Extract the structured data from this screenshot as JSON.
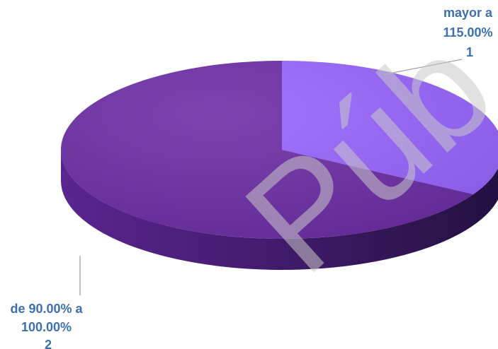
{
  "chart_data": {
    "type": "pie",
    "title": "",
    "categories": [
      "mayor a 115.00%",
      "de 90.00% a 100.00%"
    ],
    "values": [
      1,
      2
    ],
    "colors": [
      "#9966ff",
      "#6d2fa6"
    ],
    "labels": [
      {
        "line1": "mayor a",
        "line2": "115.00%",
        "value": "1"
      },
      {
        "line1": "de 90.00% a",
        "line2": "100.00%",
        "value": "2"
      }
    ],
    "label_color": "#3d6fb0",
    "three_d": true,
    "legend": "none"
  },
  "watermark": {
    "text": "Púb"
  }
}
